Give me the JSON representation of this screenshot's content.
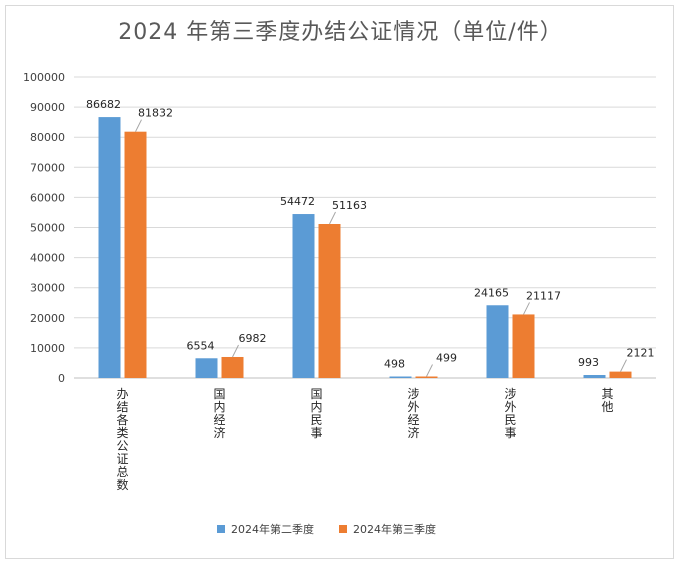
{
  "chart_data": {
    "type": "bar",
    "title": "2024 年第三季度办结公证情况（单位/件）",
    "categories": [
      "办结各类公证总数",
      "国内经济",
      "国内民事",
      "涉外经济",
      "涉外民事",
      "其他"
    ],
    "series": [
      {
        "name": "2024年第二季度",
        "color": "#5b9bd5",
        "values": [
          86682,
          6554,
          54472,
          498,
          24165,
          993
        ]
      },
      {
        "name": "2024年第三季度",
        "color": "#ed7d31",
        "values": [
          81832,
          6982,
          51163,
          499,
          21117,
          2121
        ]
      }
    ],
    "ylim": [
      0,
      100000
    ],
    "yticks": [
      0,
      10000,
      20000,
      30000,
      40000,
      50000,
      60000,
      70000,
      80000,
      90000,
      100000
    ],
    "grid": true,
    "legend": "bottom",
    "xlabel": "",
    "ylabel": ""
  }
}
